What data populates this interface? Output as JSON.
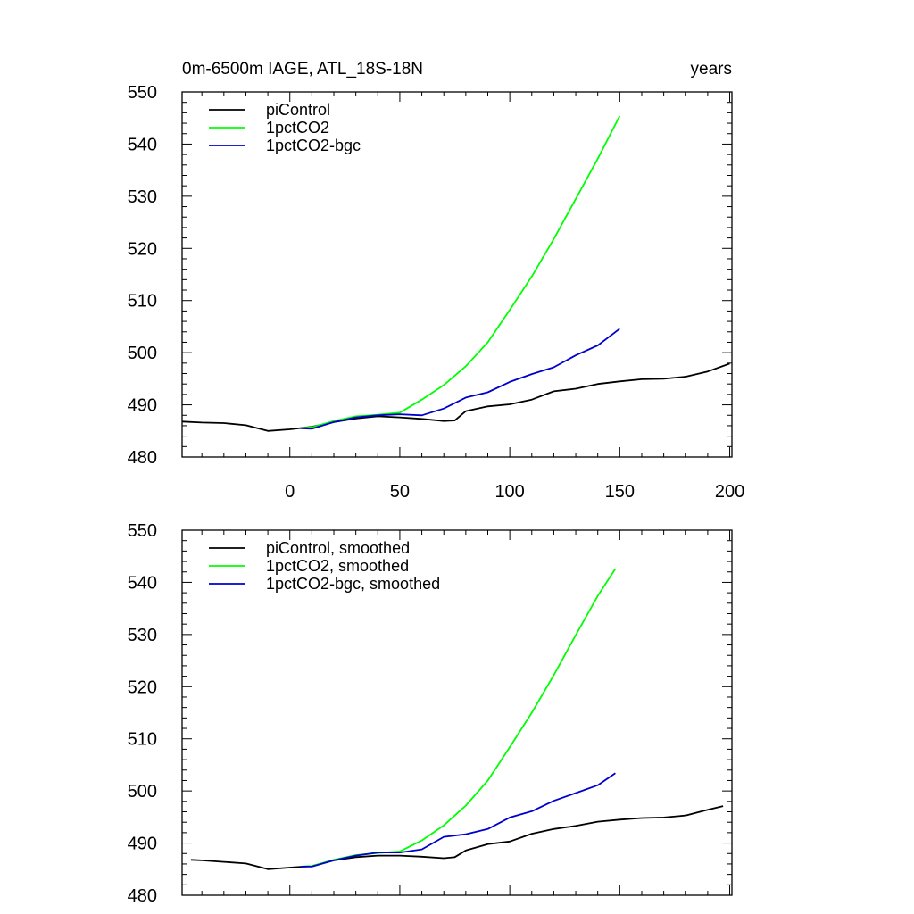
{
  "header": {
    "left": "0m-6500m IAGE, ATL_18S-18N",
    "right": "years"
  },
  "colors": {
    "piControl": "#000000",
    "1pctCO2": "#00ff00",
    "1pctCO2-bgc": "#0000cd"
  },
  "chart_data": [
    {
      "type": "line",
      "title": "",
      "xlabel": "",
      "ylabel": "",
      "xlim": [
        -49,
        201
      ],
      "ylim": [
        480,
        550
      ],
      "xticks": [
        0,
        50,
        100,
        150,
        200
      ],
      "yticks": [
        480,
        490,
        500,
        510,
        520,
        530,
        540,
        550
      ],
      "grid": false,
      "legend": "top-left",
      "series": [
        {
          "name": "piControl",
          "color_key": "piControl",
          "x": [
            -49,
            -40,
            -30,
            -20,
            -10,
            0,
            10,
            20,
            30,
            40,
            50,
            60,
            70,
            75,
            80,
            90,
            100,
            110,
            120,
            130,
            140,
            150,
            160,
            170,
            180,
            190,
            200
          ],
          "y": [
            486.8,
            486.6,
            486.5,
            486.1,
            485.0,
            485.3,
            485.8,
            486.7,
            487.4,
            487.8,
            487.6,
            487.3,
            486.9,
            487.0,
            488.8,
            489.7,
            490.1,
            491.0,
            492.6,
            493.1,
            494.0,
            494.5,
            494.9,
            495.0,
            495.4,
            496.4,
            497.9
          ]
        },
        {
          "name": "1pctCO2",
          "color_key": "1pctCO2",
          "x": [
            5,
            10,
            20,
            30,
            40,
            50,
            60,
            70,
            80,
            90,
            100,
            110,
            120,
            130,
            140,
            150
          ],
          "y": [
            485.5,
            485.7,
            486.9,
            487.8,
            488.1,
            488.5,
            491.0,
            493.8,
            497.4,
            502.0,
            508.2,
            514.6,
            521.8,
            529.5,
            537.2,
            545.4
          ]
        },
        {
          "name": "1pctCO2-bgc",
          "color_key": "1pctCO2-bgc",
          "x": [
            5,
            10,
            20,
            30,
            40,
            50,
            60,
            70,
            80,
            90,
            100,
            110,
            120,
            130,
            140,
            150
          ],
          "y": [
            485.5,
            485.4,
            486.7,
            487.6,
            488.0,
            488.2,
            488.0,
            489.3,
            491.4,
            492.4,
            494.4,
            495.9,
            497.2,
            499.5,
            501.4,
            504.6
          ]
        }
      ]
    },
    {
      "type": "line",
      "title": "",
      "xlabel": "",
      "ylabel": "",
      "xlim": [
        -49,
        201
      ],
      "ylim": [
        480,
        550
      ],
      "xticks": [
        0,
        50,
        100,
        150,
        200
      ],
      "yticks": [
        480,
        490,
        500,
        510,
        520,
        530,
        540,
        550
      ],
      "grid": false,
      "legend": "top-left",
      "series": [
        {
          "name": "piControl, smoothed",
          "color_key": "piControl",
          "x": [
            -45,
            -40,
            -30,
            -20,
            -10,
            0,
            10,
            20,
            30,
            40,
            50,
            60,
            70,
            75,
            80,
            90,
            100,
            110,
            120,
            130,
            140,
            150,
            160,
            170,
            180,
            190,
            197
          ],
          "y": [
            486.8,
            486.7,
            486.4,
            486.1,
            485.0,
            485.3,
            485.6,
            486.7,
            487.3,
            487.6,
            487.6,
            487.4,
            487.1,
            487.3,
            488.6,
            489.8,
            490.3,
            491.8,
            492.7,
            493.3,
            494.1,
            494.5,
            494.8,
            494.9,
            495.3,
            496.4,
            497.1
          ]
        },
        {
          "name": "1pctCO2, smoothed",
          "color_key": "1pctCO2",
          "x": [
            5,
            10,
            20,
            30,
            40,
            50,
            60,
            70,
            80,
            90,
            100,
            110,
            120,
            130,
            140,
            148
          ],
          "y": [
            485.5,
            485.6,
            486.8,
            487.7,
            488.1,
            488.4,
            490.5,
            493.4,
            497.2,
            502.0,
            508.4,
            515.0,
            522.2,
            529.9,
            537.4,
            542.6
          ]
        },
        {
          "name": "1pctCO2-bgc, smoothed",
          "color_key": "1pctCO2-bgc",
          "x": [
            5,
            10,
            20,
            30,
            40,
            50,
            60,
            70,
            80,
            90,
            100,
            110,
            120,
            130,
            140,
            148
          ],
          "y": [
            485.5,
            485.5,
            486.7,
            487.6,
            488.2,
            488.2,
            488.8,
            491.2,
            491.7,
            492.7,
            494.9,
            496.1,
            498.1,
            499.6,
            501.1,
            503.4
          ]
        }
      ]
    }
  ]
}
